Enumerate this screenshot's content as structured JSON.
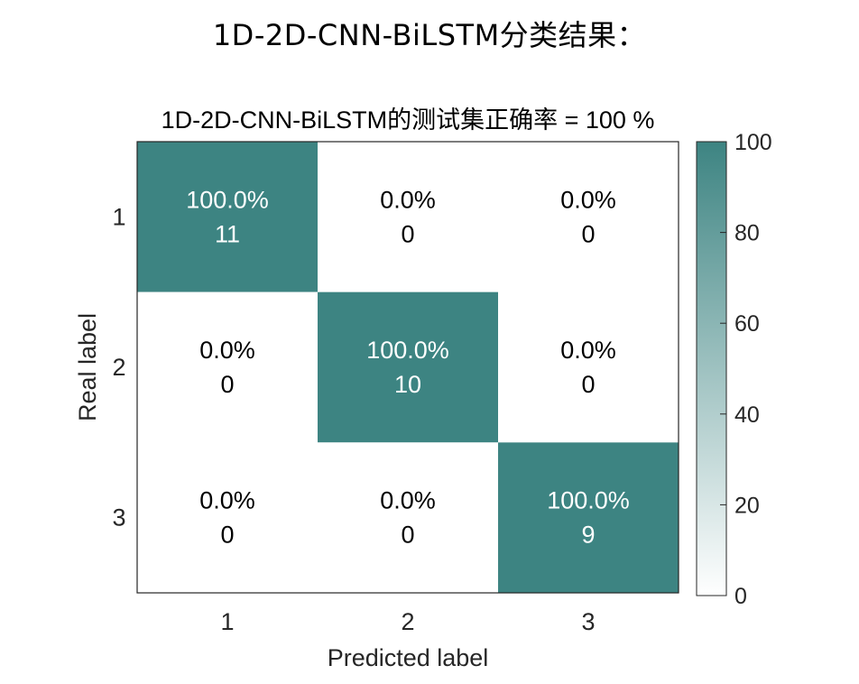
{
  "page": {
    "heading": "1D-2D-CNN-BiLSTM分类结果："
  },
  "colors": {
    "cell_high": "#3d8482",
    "cell_low": "#ffffff",
    "text_on_high": "#ffffff",
    "text_on_low": "#000000",
    "axis": "#262626"
  },
  "chart_data": {
    "type": "heatmap",
    "title": "1D-2D-CNN-BiLSTM的测试集正确率 = 100 %",
    "xlabel": "Predicted label",
    "ylabel": "Real label",
    "x_categories": [
      "1",
      "2",
      "3"
    ],
    "y_categories": [
      "1",
      "2",
      "3"
    ],
    "counts": [
      [
        11,
        0,
        0
      ],
      [
        0,
        10,
        0
      ],
      [
        0,
        0,
        9
      ]
    ],
    "percents": [
      [
        "100.0%",
        "0.0%",
        "0.0%"
      ],
      [
        "0.0%",
        "100.0%",
        "0.0%"
      ],
      [
        "0.0%",
        "0.0%",
        "100.0%"
      ]
    ],
    "colorbar": {
      "range": [
        0,
        100
      ],
      "ticks": [
        "0",
        "20",
        "40",
        "60",
        "80",
        "100"
      ]
    }
  }
}
